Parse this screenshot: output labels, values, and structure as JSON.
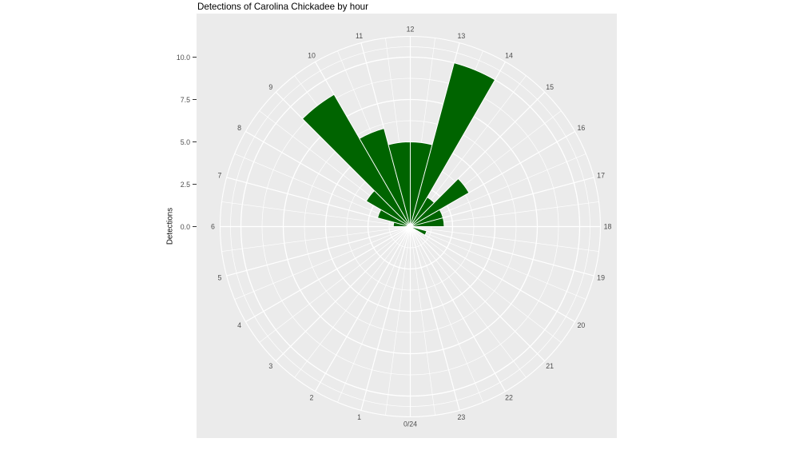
{
  "chart_data": {
    "type": "polar_bar",
    "title": "Detections of Carolina Chickadee by hour",
    "ylabel": "Detections",
    "xlabel": "",
    "y_tick_labels": [
      "0.0",
      "2.5",
      "5.0",
      "7.5",
      "10.0"
    ],
    "y_ticks": [
      0,
      2.5,
      5,
      7.5,
      10
    ],
    "ylim": [
      0,
      10
    ],
    "theta_axis": "hour of day, 24 bins, clockwise, 0/24 at bottom, 12 at top",
    "hour_labels": [
      "0/24",
      "1",
      "2",
      "3",
      "4",
      "5",
      "6",
      "7",
      "8",
      "9",
      "10",
      "11",
      "12",
      "13",
      "14",
      "15",
      "16",
      "17",
      "18",
      "19",
      "20",
      "21",
      "22",
      "23"
    ],
    "series": [
      {
        "name": "Detections",
        "bin_rule": "index h = bin from hour h to h+1",
        "values": [
          0,
          0,
          0,
          0,
          0,
          0,
          1,
          2,
          3,
          9,
          6,
          5,
          5,
          10,
          2,
          4,
          2,
          2,
          0,
          1,
          0,
          0,
          0,
          0
        ]
      }
    ],
    "grid": true,
    "legend": false,
    "colors": {
      "bar_fill": "#006400",
      "bar_border": "#ffffff",
      "panel_bg": "#ebebeb",
      "grid": "#ffffff",
      "tick_label": "#4d4d4d",
      "hour_label": "#4d4d4d",
      "title": "#000000",
      "page_bg": "#ffffff"
    }
  }
}
